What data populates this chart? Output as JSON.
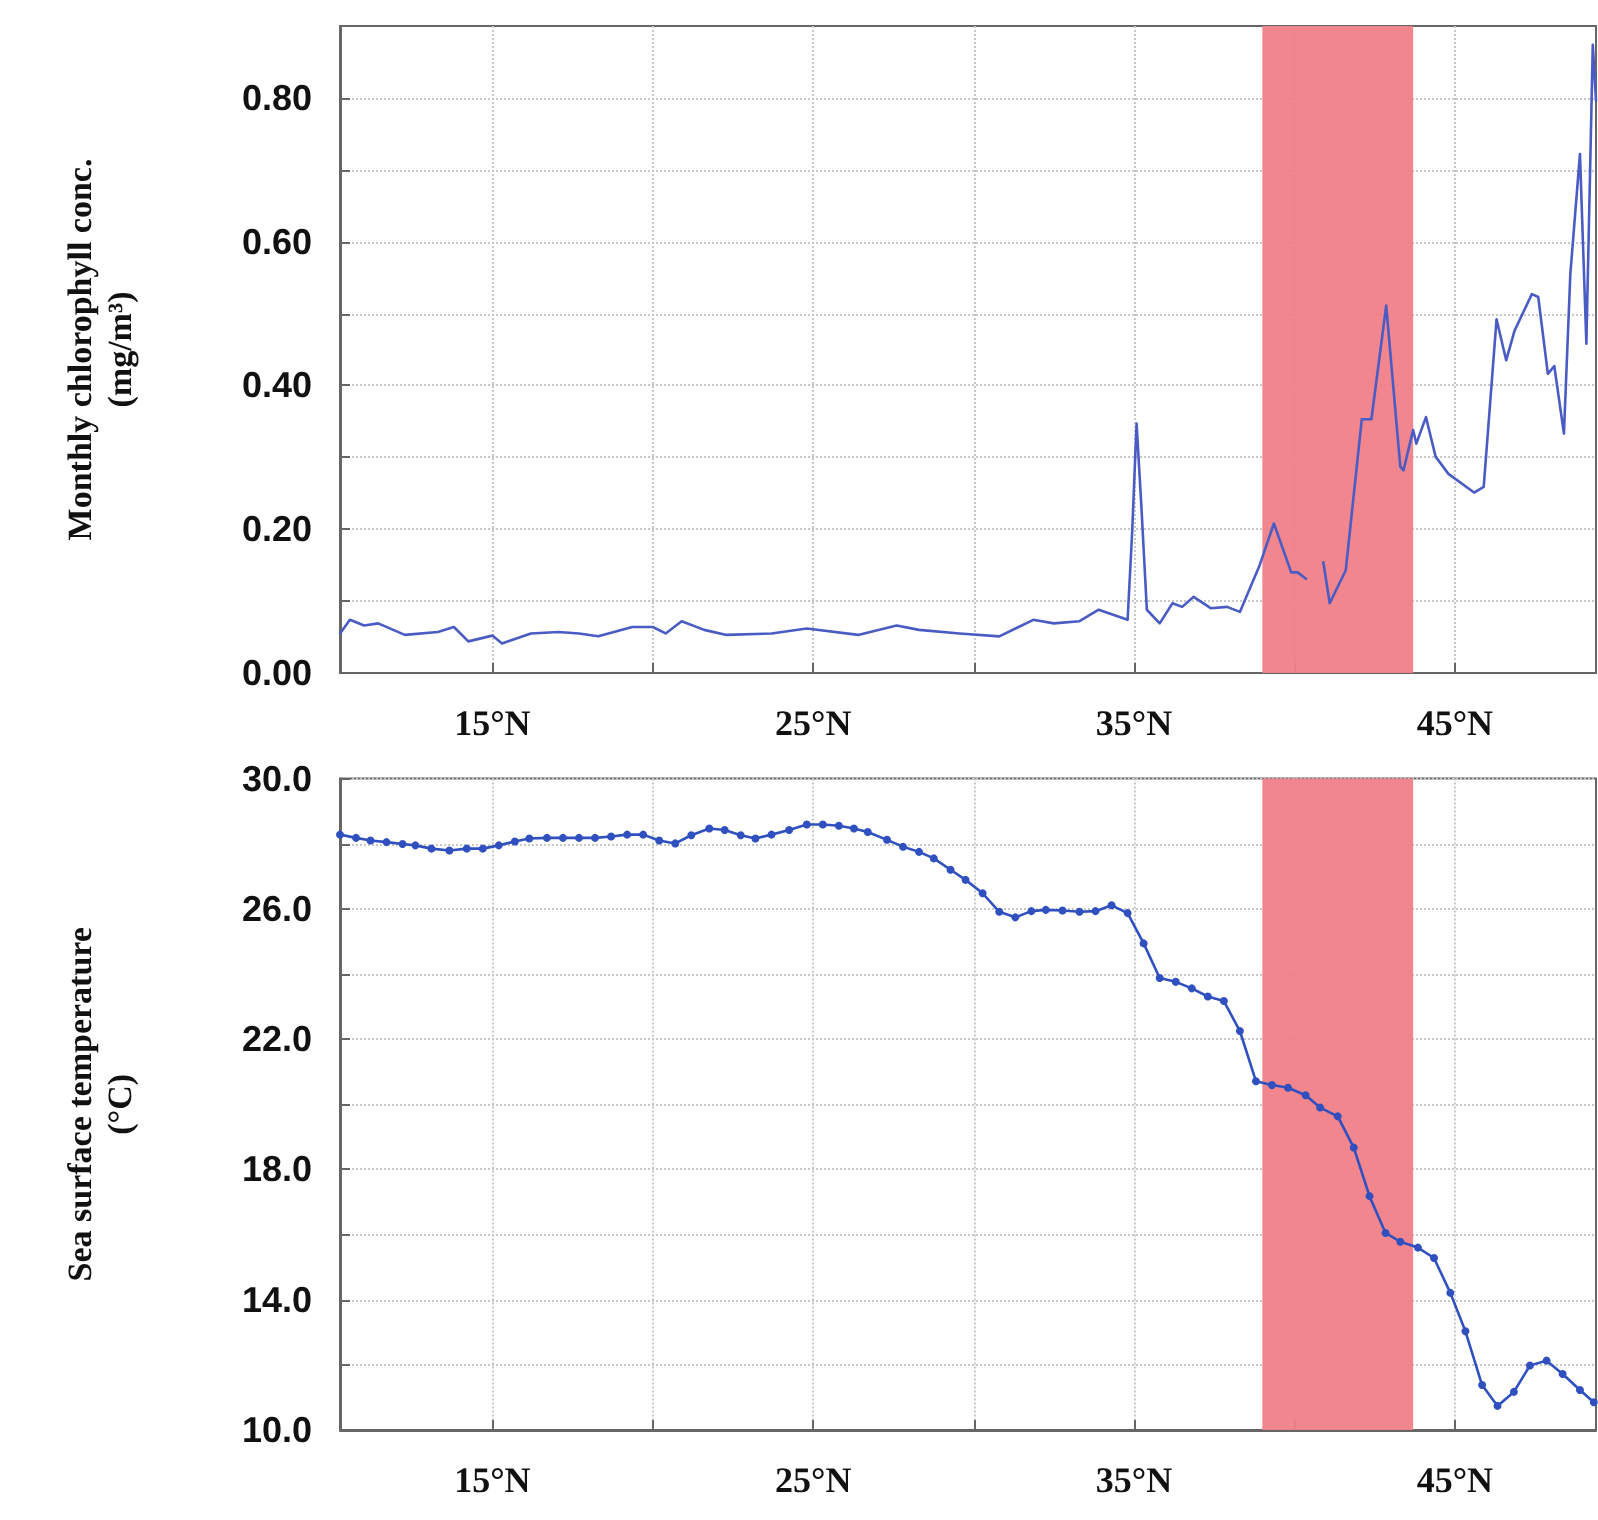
{
  "chart_data": [
    {
      "type": "line",
      "ylabel": "Monthly chlorophyll conc.\n(mg/m³)",
      "marker": "none",
      "grid": true,
      "color": "#4a5cc4",
      "x": [
        10.25,
        10.56,
        11.0,
        11.44,
        12.27,
        13.3,
        13.8,
        14.25,
        15.0,
        15.3,
        16.2,
        17.06,
        17.7,
        18.3,
        19.36,
        20.0,
        20.4,
        20.9,
        21.6,
        22.3,
        23.7,
        24.8,
        26.4,
        27.6,
        28.3,
        29.56,
        30.8,
        31.86,
        32.5,
        33.3,
        33.9,
        34.8,
        34.94,
        35.08,
        35.23,
        35.4,
        35.8,
        36.2,
        36.5,
        36.86,
        37.4,
        37.9,
        38.3,
        38.9,
        39.36,
        39.9,
        40.1,
        40.36,
        40.6,
        40.9,
        41.1,
        41.6,
        42.1,
        42.4,
        42.86,
        43.3,
        43.4,
        43.7,
        43.8,
        44.1,
        44.4,
        44.8,
        45.6,
        45.9,
        46.3,
        46.6,
        46.86,
        47.4,
        47.6,
        47.9,
        48.1,
        48.4,
        48.6,
        48.9,
        49.1,
        49.3,
        49.4
      ],
      "values": [
        0.055,
        0.074,
        0.066,
        0.069,
        0.053,
        0.057,
        0.064,
        0.044,
        0.052,
        0.041,
        0.055,
        0.057,
        0.055,
        0.051,
        0.064,
        0.064,
        0.055,
        0.072,
        0.06,
        0.053,
        0.055,
        0.062,
        0.053,
        0.066,
        0.06,
        0.055,
        0.051,
        0.074,
        0.069,
        0.072,
        0.088,
        0.074,
        0.194,
        0.347,
        0.231,
        0.088,
        0.069,
        0.097,
        0.092,
        0.106,
        0.09,
        0.092,
        0.085,
        0.148,
        0.208,
        0.14,
        0.14,
        0.131,
        null,
        0.154,
        0.097,
        0.143,
        0.353,
        0.353,
        0.511,
        0.287,
        0.282,
        0.338,
        0.319,
        0.356,
        0.301,
        0.277,
        0.251,
        0.259,
        0.492,
        0.435,
        0.476,
        0.527,
        0.523,
        0.416,
        0.427,
        0.333,
        0.555,
        0.722,
        0.458,
        0.874,
        0.796
      ],
      "xlim": [
        10.25,
        49.4
      ],
      "xticks": [
        {
          "value": 15,
          "label": "15°N"
        },
        {
          "value": 20,
          "label": null
        },
        {
          "value": 25,
          "label": "25°N"
        },
        {
          "value": 30,
          "label": null
        },
        {
          "value": 35,
          "label": "35°N"
        },
        {
          "value": 40,
          "label": null
        },
        {
          "value": 45,
          "label": "45°N"
        }
      ],
      "ylim": [
        0,
        0.9
      ],
      "yticks": [
        {
          "value": 0,
          "label": "0.00"
        },
        {
          "value": 0.1,
          "label": null
        },
        {
          "value": 0.2,
          "label": "0.20"
        },
        {
          "value": 0.3,
          "label": null
        },
        {
          "value": 0.4,
          "label": "0.40"
        },
        {
          "value": 0.5,
          "label": null
        },
        {
          "value": 0.6,
          "label": "0.60"
        },
        {
          "value": 0.7,
          "label": null
        },
        {
          "value": 0.8,
          "label": "0.80"
        }
      ],
      "bands": [
        {
          "axis": "x",
          "from": 39.0,
          "to": 43.7,
          "label": null,
          "color": "#f08088"
        }
      ]
    },
    {
      "type": "line",
      "ylabel": "Sea surface temperature\n(°C)",
      "marker": "circle",
      "grid": true,
      "color": "#3050c0",
      "x": [
        10.25,
        10.75,
        11.2,
        11.7,
        12.2,
        12.6,
        13.1,
        13.66,
        14.2,
        14.7,
        15.2,
        15.7,
        16.15,
        16.7,
        17.2,
        17.7,
        18.2,
        18.7,
        19.2,
        19.7,
        20.2,
        20.7,
        21.2,
        21.76,
        22.24,
        22.74,
        23.2,
        23.7,
        24.25,
        24.8,
        25.3,
        25.8,
        26.27,
        26.7,
        27.3,
        27.8,
        28.3,
        28.76,
        29.28,
        29.75,
        30.28,
        30.8,
        31.3,
        31.8,
        32.25,
        32.77,
        33.3,
        33.8,
        34.3,
        34.8,
        35.3,
        35.8,
        36.3,
        36.8,
        37.3,
        37.8,
        38.3,
        38.8,
        39.3,
        39.8,
        40.35,
        40.8,
        41.35,
        41.85,
        42.34,
        42.84,
        43.3,
        43.85,
        44.35,
        44.86,
        45.33,
        45.85,
        46.33,
        46.84,
        47.34,
        47.86,
        48.36,
        48.9,
        49.33
      ],
      "values": [
        28.28,
        28.18,
        28.1,
        28.05,
        27.99,
        27.95,
        27.85,
        27.79,
        27.85,
        27.85,
        27.95,
        28.07,
        28.16,
        28.18,
        28.18,
        28.18,
        28.18,
        28.22,
        28.28,
        28.28,
        28.1,
        28.01,
        28.26,
        28.47,
        28.42,
        28.26,
        28.16,
        28.28,
        28.42,
        28.59,
        28.59,
        28.55,
        28.47,
        28.36,
        28.12,
        27.91,
        27.75,
        27.55,
        27.2,
        26.89,
        26.48,
        25.91,
        25.74,
        25.93,
        25.97,
        25.95,
        25.91,
        25.93,
        26.11,
        25.87,
        24.94,
        23.88,
        23.76,
        23.56,
        23.31,
        23.17,
        22.25,
        20.71,
        20.59,
        20.51,
        20.28,
        19.9,
        19.63,
        18.67,
        17.18,
        16.05,
        15.78,
        15.6,
        15.28,
        14.21,
        13.03,
        11.38,
        10.74,
        11.17,
        11.98,
        12.13,
        11.72,
        11.23,
        10.85
      ],
      "xlim": [
        10.25,
        49.4
      ],
      "xticks": [
        {
          "value": 15,
          "label": "15°N"
        },
        {
          "value": 20,
          "label": null
        },
        {
          "value": 25,
          "label": "25°N"
        },
        {
          "value": 30,
          "label": null
        },
        {
          "value": 35,
          "label": "35°N"
        },
        {
          "value": 40,
          "label": null
        },
        {
          "value": 45,
          "label": "45°N"
        }
      ],
      "ylim": [
        10,
        30
      ],
      "yticks": [
        {
          "value": 10,
          "label": "10.0"
        },
        {
          "value": 12,
          "label": null
        },
        {
          "value": 14,
          "label": "14.0"
        },
        {
          "value": 16,
          "label": null
        },
        {
          "value": 18,
          "label": "18.0"
        },
        {
          "value": 20,
          "label": null
        },
        {
          "value": 22,
          "label": "22.0"
        },
        {
          "value": 24,
          "label": null
        },
        {
          "value": 26,
          "label": "26.0"
        },
        {
          "value": 28,
          "label": null
        },
        {
          "value": 30,
          "label": "30.0"
        }
      ],
      "bands": [
        {
          "axis": "x",
          "from": 39.0,
          "to": 43.7,
          "label": null,
          "color": "#f08088"
        }
      ]
    }
  ]
}
